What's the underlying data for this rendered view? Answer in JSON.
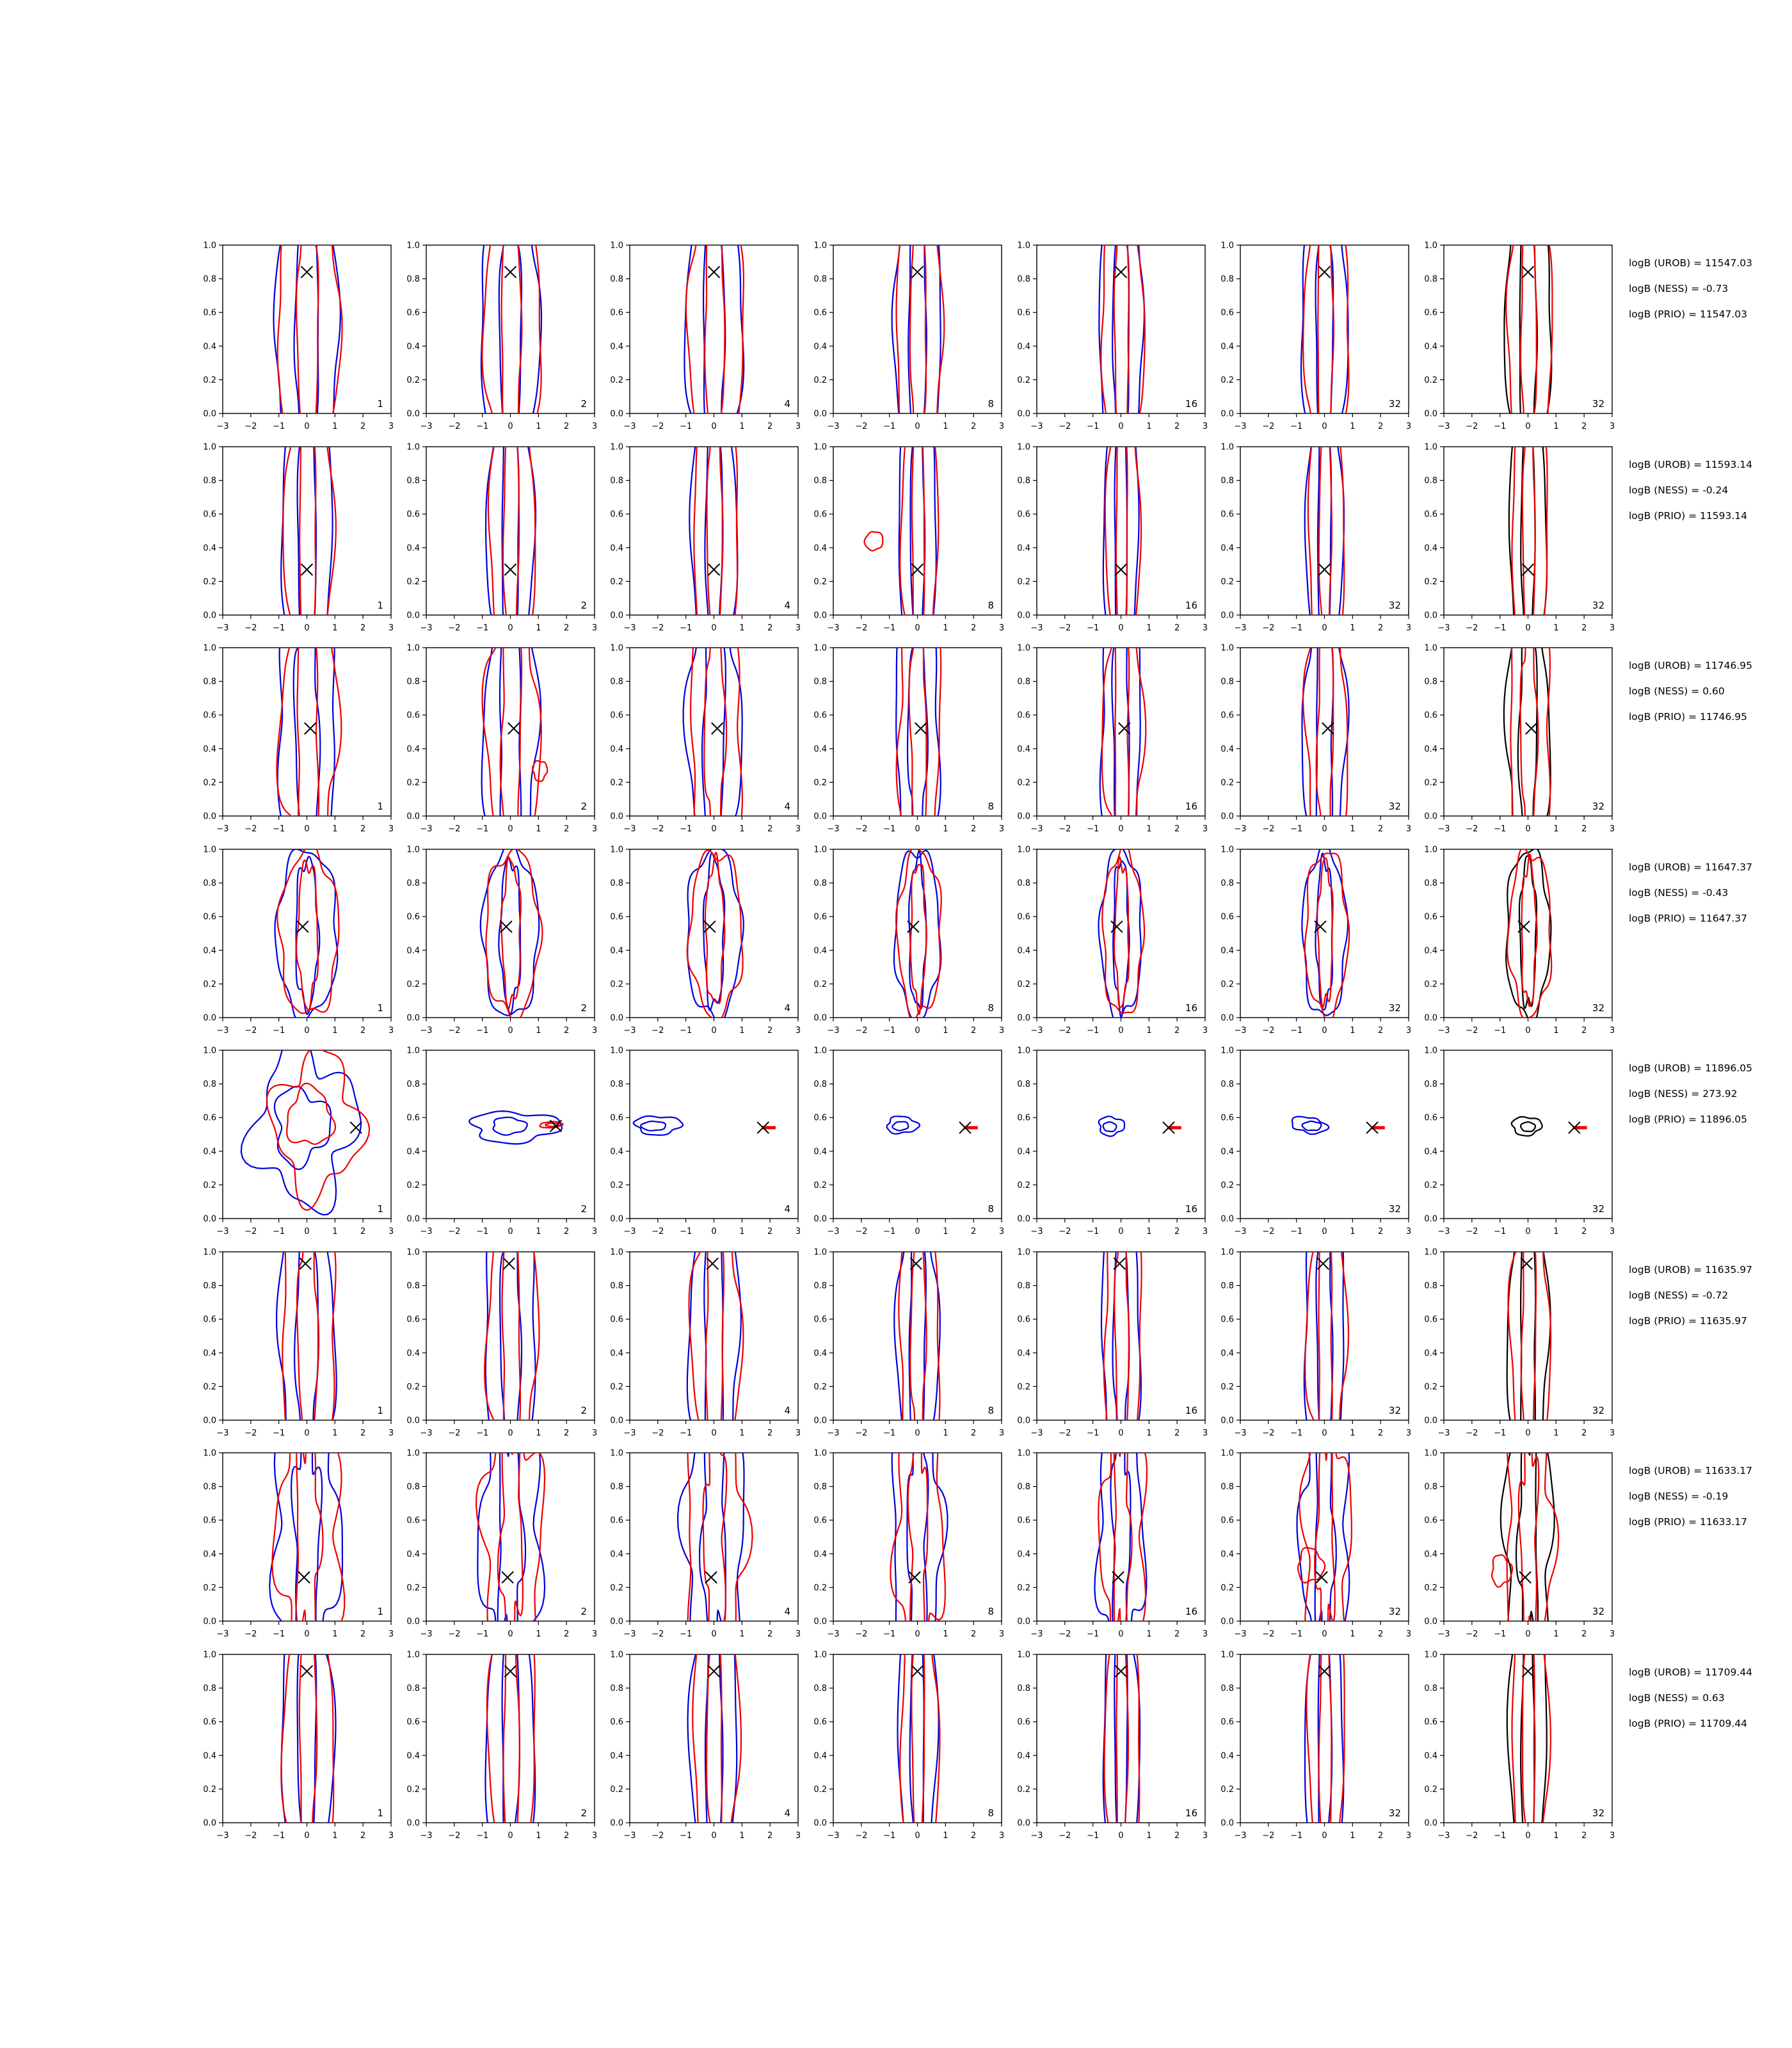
{
  "figure_title": "",
  "colors": {
    "blue": "#0000dd",
    "red": "#ee0000",
    "black": "#000000",
    "marker": "#000000"
  },
  "axes": {
    "xlim": [
      -3,
      3
    ],
    "ylim": [
      0,
      1
    ],
    "x_tick_labels": [
      "−3",
      "−2",
      "−1",
      "0",
      "1",
      "2",
      "3"
    ],
    "y_tick_labels": [
      "0.0",
      "0.2",
      "0.4",
      "0.6",
      "0.8",
      "1.0"
    ]
  },
  "chart_data": {
    "type": "contour_grid",
    "description": "8x7 grid of 2D kernel-density contour plots; blue and red contour pairs (black replaces blue in last column), true value marked with a black x; columns labelled by particle count",
    "grid": {
      "rows": 8,
      "cols": 7
    },
    "xlim": [
      -3,
      3
    ],
    "ylim": [
      0,
      1
    ],
    "column_labels": [
      "1",
      "2",
      "4",
      "8",
      "16",
      "32",
      "32"
    ],
    "column_wscale": [
      1.0,
      0.92,
      0.9,
      0.74,
      0.68,
      0.72,
      0.72
    ],
    "rows": [
      {
        "annotations": [
          "logB (UROB) = 11547.03",
          "logB (NESS) = -0.73",
          "logB (PRIO) = 11547.03"
        ],
        "logB_UROB": 11547.03,
        "logB_NESS": -0.73,
        "logB_PRIO": 11547.03,
        "marker": [
          0.0,
          0.84
        ],
        "shape": {
          "rx_outer": 1.15,
          "rx_inner": 0.42,
          "ry_outer": 0.85,
          "ry_inner": 0.78,
          "w": 0.05,
          "f": 5
        }
      },
      {
        "annotations": [
          "logB (UROB) = 11593.14",
          "logB (NESS) = -0.24",
          "logB (PRIO) = 11593.14"
        ],
        "logB_UROB": 11593.14,
        "logB_NESS": -0.24,
        "logB_PRIO": 11593.14,
        "marker": [
          0.0,
          0.27
        ],
        "shape": {
          "rx_outer": 0.92,
          "rx_inner": 0.33,
          "ry_outer": 0.85,
          "ry_inner": 0.78,
          "w": 0.05,
          "f": 4
        }
      },
      {
        "annotations": [
          "logB (UROB) = 11746.95",
          "logB (NESS) = 0.60",
          "logB (PRIO) = 11746.95"
        ],
        "logB_UROB": 11746.95,
        "logB_NESS": 0.6,
        "logB_PRIO": 11746.95,
        "marker": [
          0.12,
          0.52
        ],
        "shape": {
          "rx_outer": 1.05,
          "rx_inner": 0.42,
          "ry_outer": 0.85,
          "ry_inner": 0.78,
          "w": 0.11,
          "f": 4
        }
      },
      {
        "annotations": [
          "logB (UROB) = 11647.37",
          "logB (NESS) = -0.43",
          "logB (PRIO) = 11647.37"
        ],
        "logB_UROB": 11647.37,
        "logB_NESS": -0.43,
        "logB_PRIO": 11647.37,
        "marker": [
          -0.15,
          0.54
        ],
        "shape": {
          "rx_outer": 1.08,
          "rx_inner": 0.4,
          "ry_outer": 0.5,
          "ry_inner": 0.44,
          "w": 0.07,
          "f": 5
        }
      },
      {
        "annotations": [
          "logB (UROB) = 11896.05",
          "logB (NESS) = 273.92",
          "logB (PRIO) = 11896.05"
        ],
        "logB_UROB": 11896.05,
        "logB_NESS": 273.92,
        "logB_PRIO": 11896.05,
        "marker": [
          1.7,
          0.54
        ],
        "panels": [
          {
            "marker": [
              1.75,
              0.54
            ],
            "dash": false,
            "contours": [
              {
                "color": "blue",
                "cx": -0.1,
                "cy": 0.55,
                "rx": 1.75,
                "ry": 0.45,
                "w": 0.22,
                "f": 4,
                "s": 0.5
              },
              {
                "color": "blue",
                "cx": -0.2,
                "cy": 0.55,
                "rx": 0.95,
                "ry": 0.22,
                "w": 0.18,
                "f": 3,
                "s": 1.2
              },
              {
                "color": "red",
                "cx": 0.35,
                "cy": 0.56,
                "rx": 1.5,
                "ry": 0.4,
                "w": 0.2,
                "f": 4,
                "s": 2.4
              },
              {
                "color": "red",
                "cx": 0.1,
                "cy": 0.6,
                "rx": 0.8,
                "ry": 0.17,
                "w": 0.15,
                "f": 3,
                "s": 3.1
              }
            ]
          },
          {
            "marker": [
              1.62,
              0.55
            ],
            "dash": false,
            "contours": [
              {
                "color": "blue",
                "cx": 0.15,
                "cy": 0.545,
                "rx": 1.55,
                "ry": 0.09,
                "w": 0.15,
                "f": 3,
                "s": 0.8
              },
              {
                "color": "blue",
                "cx": -0.05,
                "cy": 0.55,
                "rx": 0.6,
                "ry": 0.05,
                "w": 0.1,
                "f": 3,
                "s": 1.6
              },
              {
                "color": "red",
                "cx": 1.45,
                "cy": 0.557,
                "rx": 0.4,
                "ry": 0.018,
                "w": 0.1,
                "f": 2,
                "s": 0.0
              },
              {
                "color": "red",
                "cx": 1.5,
                "cy": 0.557,
                "rx": 0.22,
                "ry": 0.01,
                "w": 0.1,
                "f": 2,
                "s": 1.0
              }
            ]
          },
          {
            "marker": [
              1.75,
              0.54
            ],
            "dash": true,
            "contours": [
              {
                "color": "blue",
                "cx": -2.0,
                "cy": 0.555,
                "rx": 0.82,
                "ry": 0.055,
                "w": 0.12,
                "f": 3,
                "s": 0.4
              },
              {
                "color": "blue",
                "cx": -2.15,
                "cy": 0.55,
                "rx": 0.4,
                "ry": 0.03,
                "w": 0.1,
                "f": 2,
                "s": 1.4
              }
            ]
          },
          {
            "marker": [
              1.7,
              0.54
            ],
            "dash": true,
            "contours": [
              {
                "color": "blue",
                "cx": -0.55,
                "cy": 0.555,
                "rx": 0.55,
                "ry": 0.05,
                "w": 0.12,
                "f": 3,
                "s": 2.2
              },
              {
                "color": "blue",
                "cx": -0.6,
                "cy": 0.55,
                "rx": 0.26,
                "ry": 0.028,
                "w": 0.1,
                "f": 2,
                "s": 0.9
              }
            ]
          },
          {
            "marker": [
              1.7,
              0.54
            ],
            "dash": true,
            "contours": [
              {
                "color": "blue",
                "cx": -0.35,
                "cy": 0.55,
                "rx": 0.45,
                "ry": 0.055,
                "w": 0.12,
                "f": 3,
                "s": 1.1
              },
              {
                "color": "blue",
                "cx": -0.4,
                "cy": 0.545,
                "rx": 0.22,
                "ry": 0.03,
                "w": 0.08,
                "f": 2,
                "s": 2.0
              }
            ]
          },
          {
            "marker": [
              1.7,
              0.54
            ],
            "dash": true,
            "contours": [
              {
                "color": "blue",
                "cx": -0.55,
                "cy": 0.555,
                "rx": 0.58,
                "ry": 0.05,
                "w": 0.2,
                "f": 2,
                "s": 2.8
              },
              {
                "color": "blue",
                "cx": -0.45,
                "cy": 0.55,
                "rx": 0.3,
                "ry": 0.03,
                "w": 0.12,
                "f": 2,
                "s": 1.7
              }
            ]
          },
          {
            "marker": [
              1.65,
              0.54
            ],
            "dash": true,
            "contours": [
              {
                "color": "black",
                "cx": -0.05,
                "cy": 0.55,
                "rx": 0.52,
                "ry": 0.055,
                "w": 0.1,
                "f": 3,
                "s": 0.6
              },
              {
                "color": "black",
                "cx": 0.0,
                "cy": 0.545,
                "rx": 0.24,
                "ry": 0.03,
                "w": 0.08,
                "f": 2,
                "s": 1.9
              }
            ]
          }
        ]
      },
      {
        "annotations": [
          "logB (UROB) = 11635.97",
          "logB (NESS) = -0.72",
          "logB (PRIO) = 11635.97"
        ],
        "logB_UROB": 11635.97,
        "logB_NESS": -0.72,
        "logB_PRIO": 11635.97,
        "marker": [
          -0.05,
          0.93
        ],
        "shape": {
          "rx_outer": 1.0,
          "rx_inner": 0.38,
          "ry_outer": 0.85,
          "ry_inner": 0.78,
          "w": 0.09,
          "f": 4
        }
      },
      {
        "annotations": [
          "logB (UROB) = 11633.17",
          "logB (NESS) = -0.19",
          "logB (PRIO) = 11633.17"
        ],
        "logB_UROB": 11633.17,
        "logB_NESS": -0.19,
        "logB_PRIO": 11633.17,
        "marker": [
          -0.1,
          0.26
        ],
        "shape": {
          "rx_outer": 1.18,
          "rx_inner": 0.45,
          "ry_outer": 0.78,
          "ry_inner": 0.72,
          "w": 0.16,
          "f": 5
        }
      },
      {
        "annotations": [
          "logB (UROB) = 11709.44",
          "logB (NESS) = 0.63",
          "logB (PRIO) = 11709.44"
        ],
        "logB_UROB": 11709.44,
        "logB_NESS": 0.63,
        "logB_PRIO": 11709.44,
        "marker": [
          0.0,
          0.9
        ],
        "shape": {
          "rx_outer": 0.95,
          "rx_inner": 0.33,
          "ry_outer": 0.85,
          "ry_inner": 0.78,
          "w": 0.07,
          "f": 3
        }
      }
    ],
    "extras": [
      {
        "r": 2,
        "c": 1,
        "contours": [
          {
            "color": "red",
            "cx": 1.05,
            "cy": 0.27,
            "rx": 0.25,
            "ry": 0.06,
            "w": 0.1,
            "f": 3,
            "s": 0.4
          }
        ]
      },
      {
        "r": 1,
        "c": 3,
        "contours": [
          {
            "color": "red",
            "cx": -1.55,
            "cy": 0.44,
            "rx": 0.3,
            "ry": 0.06,
            "w": 0.1,
            "f": 2,
            "s": 1.1
          }
        ]
      },
      {
        "r": 6,
        "c": 5,
        "contours": [
          {
            "color": "red",
            "cx": -0.5,
            "cy": 0.33,
            "rx": 0.45,
            "ry": 0.1,
            "w": 0.12,
            "f": 3,
            "s": 2.3
          }
        ]
      },
      {
        "r": 6,
        "c": 6,
        "contours": [
          {
            "color": "red",
            "cx": -0.95,
            "cy": 0.3,
            "rx": 0.35,
            "ry": 0.09,
            "w": 0.12,
            "f": 3,
            "s": 1.8
          }
        ]
      }
    ]
  }
}
